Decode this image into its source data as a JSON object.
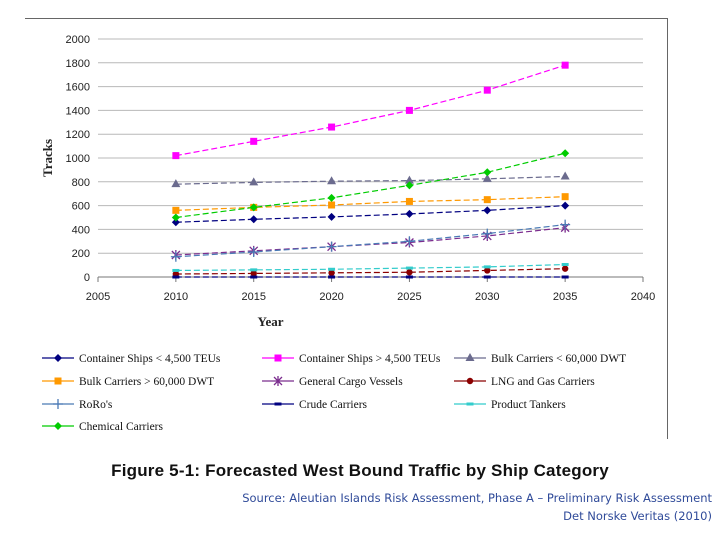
{
  "chart_data": {
    "type": "line",
    "title": "Figure 5-1:  Forecasted West Bound Traffic by Ship Category",
    "xlabel": "Year",
    "ylabel": "Tracks",
    "xlim": [
      2005,
      2040
    ],
    "ylim": [
      0,
      2000
    ],
    "x_ticks": [
      2005,
      2010,
      2015,
      2020,
      2025,
      2030,
      2035,
      2040
    ],
    "y_ticks": [
      0,
      200,
      400,
      600,
      800,
      1000,
      1200,
      1400,
      1600,
      1800,
      2000
    ],
    "x": [
      2010,
      2015,
      2020,
      2025,
      2030,
      2035
    ],
    "grid": "horizontal",
    "legend_position": "bottom",
    "series": [
      {
        "name": "Container Ships < 4,500 TEUs",
        "color": "#000080",
        "marker": "diamond",
        "values": [
          460,
          485,
          505,
          530,
          560,
          600
        ]
      },
      {
        "name": "Container Ships > 4,500 TEUs",
        "color": "#ff00ff",
        "marker": "square",
        "values": [
          1020,
          1140,
          1260,
          1400,
          1570,
          1780
        ]
      },
      {
        "name": "Bulk Carriers < 60,000 DWT",
        "color": "#6b6b8e",
        "marker": "triangle",
        "values": [
          780,
          795,
          805,
          810,
          825,
          845
        ]
      },
      {
        "name": "Bulk Carriers > 60,000 DWT",
        "color": "#ff9900",
        "marker": "square",
        "values": [
          560,
          585,
          605,
          635,
          650,
          675
        ]
      },
      {
        "name": "General Cargo Vessels",
        "color": "#7b2d8e",
        "marker": "asterisk",
        "values": [
          185,
          220,
          255,
          290,
          345,
          415
        ]
      },
      {
        "name": "LNG and Gas Carriers",
        "color": "#8b0000",
        "marker": "circle",
        "values": [
          25,
          30,
          35,
          40,
          55,
          70
        ]
      },
      {
        "name": "RoRo's",
        "color": "#4a7ab5",
        "marker": "plus",
        "values": [
          170,
          210,
          255,
          300,
          365,
          440
        ]
      },
      {
        "name": "Crude Carriers",
        "color": "#000080",
        "marker": "dash",
        "values": [
          0,
          0,
          0,
          0,
          0,
          0
        ]
      },
      {
        "name": "Product Tankers",
        "color": "#33cccc",
        "marker": "dash",
        "values": [
          55,
          60,
          65,
          75,
          85,
          105
        ]
      },
      {
        "name": "Chemical Carriers",
        "color": "#00cc00",
        "marker": "diamond",
        "values": [
          500,
          585,
          665,
          770,
          880,
          1040
        ]
      }
    ]
  },
  "source": {
    "line1": "Source: Aleutian Islands Risk Assessment, Phase A – Preliminary Risk Assessment",
    "line2": "Det Norske Veritas (2010)"
  }
}
